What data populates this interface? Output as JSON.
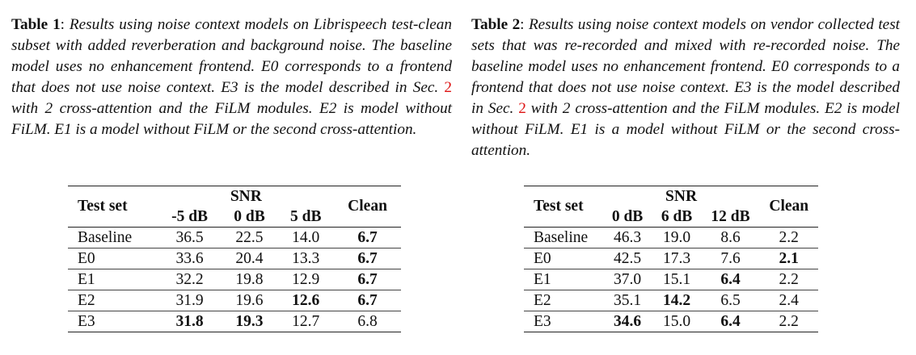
{
  "table1": {
    "label": "Table 1",
    "caption_before": "Results using noise context models on Librispeech test-clean subset with added reverberation and background noise. The baseline model uses no enhancement frontend. E0 corresponds to a frontend that does not use noise context. E3 is the model described in Sec.",
    "sec_ref": "2",
    "caption_after": "with 2 cross-attention and the FiLM modules. E2 is model without FiLM. E1 is a model without FiLM or the second cross-attention.",
    "header": {
      "test_set": "Test set",
      "group": "SNR",
      "clean": "Clean"
    },
    "snr_columns": [
      "-5 dB",
      "0 dB",
      "5 dB"
    ],
    "rows": [
      {
        "name": "Baseline",
        "values": [
          "36.5",
          "22.5",
          "14.0",
          "6.7"
        ],
        "bold": [
          false,
          false,
          false,
          true
        ]
      },
      {
        "name": "E0",
        "values": [
          "33.6",
          "20.4",
          "13.3",
          "6.7"
        ],
        "bold": [
          false,
          false,
          false,
          true
        ]
      },
      {
        "name": "E1",
        "values": [
          "32.2",
          "19.8",
          "12.9",
          "6.7"
        ],
        "bold": [
          false,
          false,
          false,
          true
        ]
      },
      {
        "name": "E2",
        "values": [
          "31.9",
          "19.6",
          "12.6",
          "6.7"
        ],
        "bold": [
          false,
          false,
          true,
          true
        ]
      },
      {
        "name": "E3",
        "values": [
          "31.8",
          "19.3",
          "12.7",
          "6.8"
        ],
        "bold": [
          true,
          true,
          false,
          false
        ]
      }
    ]
  },
  "table2": {
    "label": "Table 2",
    "caption_before": "Results using noise context models on vendor collected test sets that was re-recorded and mixed with re-recorded noise. The baseline model uses no enhancement frontend. E0 corresponds to a frontend that does not use noise context. E3 is the model described in Sec.",
    "sec_ref": "2",
    "caption_after": "with 2 cross-attention and the FiLM modules. E2 is model without FiLM. E1 is a model without FiLM or the second cross-attention.",
    "header": {
      "test_set": "Test set",
      "group": "SNR",
      "clean": "Clean"
    },
    "snr_columns": [
      "0 dB",
      "6 dB",
      "12 dB"
    ],
    "rows": [
      {
        "name": "Baseline",
        "values": [
          "46.3",
          "19.0",
          "8.6",
          "2.2"
        ],
        "bold": [
          false,
          false,
          false,
          false
        ]
      },
      {
        "name": "E0",
        "values": [
          "42.5",
          "17.3",
          "7.6",
          "2.1"
        ],
        "bold": [
          false,
          false,
          false,
          true
        ]
      },
      {
        "name": "E1",
        "values": [
          "37.0",
          "15.1",
          "6.4",
          "2.2"
        ],
        "bold": [
          false,
          false,
          true,
          false
        ]
      },
      {
        "name": "E2",
        "values": [
          "35.1",
          "14.2",
          "6.5",
          "2.4"
        ],
        "bold": [
          false,
          true,
          false,
          false
        ]
      },
      {
        "name": "E3",
        "values": [
          "34.6",
          "15.0",
          "6.4",
          "2.2"
        ],
        "bold": [
          true,
          false,
          true,
          false
        ]
      }
    ]
  }
}
